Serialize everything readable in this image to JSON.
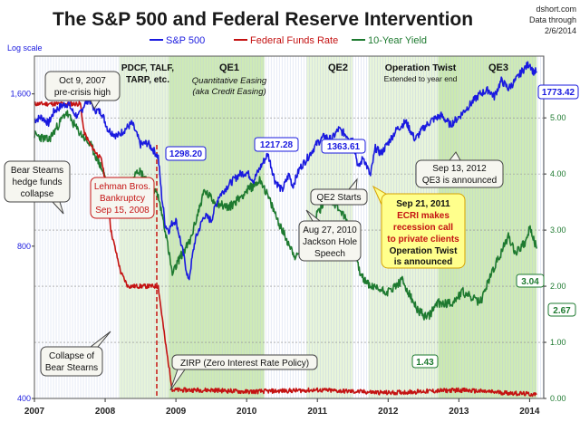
{
  "title": "The S&P 500 and Federal Reserve Intervention",
  "source": {
    "line1": "dshort.com",
    "line2": "Data through",
    "line3": "2/6/2014"
  },
  "log_scale_label": "Log scale",
  "legend": {
    "sp": "S&P 500",
    "ff": "Federal Funds Rate",
    "ty": "10-Year Yield"
  },
  "regions": {
    "pdcf": [
      "PDCF, TALF,",
      "TARP, etc."
    ],
    "qe1": [
      "QE1",
      "Quantitative Easing",
      "(aka Credit Easing)"
    ],
    "qe2": "QE2",
    "ot": [
      "Operation Twist",
      "Extended to year end"
    ],
    "qe3": "QE3"
  },
  "annotations": {
    "oct2007": [
      "Oct 9, 2007",
      "pre-crisis high"
    ],
    "bear1": [
      "Bear Stearns",
      "hedge funds",
      "collapse"
    ],
    "lehman": [
      "Lehman Bros.",
      "Bankruptcy",
      "Sep 15, 2008"
    ],
    "collapse": [
      "Collapse of",
      "Bear Stearns"
    ],
    "zirp": "ZIRP (Zero Interest Rate Policy)",
    "qe2start": "QE2 Starts",
    "aug2010": [
      "Aug 27, 2010",
      "Jackson Hole",
      "Speech"
    ],
    "ecri": [
      "Sep 21, 2011",
      "ECRI makes",
      "recession call",
      "to private clients",
      "Operation Twist",
      "is announced"
    ],
    "qe3ann": [
      "Sep 13, 2012",
      "QE3 is announced"
    ]
  },
  "value_labels": {
    "v1298": "1298.20",
    "v1217": "1217.28",
    "v1363": "1363.61",
    "v1773": "1773.42",
    "v143": "1.43",
    "v304": "3.04",
    "v267": "2.67"
  },
  "colors": {
    "sp": "#1a1adf",
    "ff": "#c41212",
    "ty": "#1e7a30",
    "title": "#1a1a1a",
    "shade_light": "#e4f3d4",
    "shade_dark": "#c7e7a8",
    "ecri_bg": "#ffff8c",
    "ecri_border": "#d6a200"
  },
  "chart_data": {
    "type": "line",
    "x_range": [
      2007.0,
      2014.2
    ],
    "x_ticks": [
      {
        "label": "2007",
        "x": 2007.0
      },
      {
        "label": "2008",
        "x": 2008.0
      },
      {
        "label": "2009",
        "x": 2009.0
      },
      {
        "label": "2010",
        "x": 2010.0
      },
      {
        "label": "2011",
        "x": 2011.0
      },
      {
        "label": "2012",
        "x": 2012.0
      },
      {
        "label": "2013",
        "x": 2013.0
      },
      {
        "label": "2014",
        "x": 2014.0
      }
    ],
    "y_left": {
      "scale": "log",
      "range": [
        400,
        1900
      ],
      "ticks": [
        {
          "label": "400",
          "v": 400
        },
        {
          "label": "800",
          "v": 800
        },
        {
          "label": "1,600",
          "v": 1600
        }
      ]
    },
    "y_right": {
      "scale": "linear",
      "range": [
        0,
        6.1
      ],
      "ticks": [
        {
          "label": "0.00",
          "v": 0
        },
        {
          "label": "1.00",
          "v": 1
        },
        {
          "label": "2.00",
          "v": 2
        },
        {
          "label": "3.00",
          "v": 3
        },
        {
          "label": "4.00",
          "v": 4
        },
        {
          "label": "5.00",
          "v": 5
        }
      ]
    },
    "shaded_regions": [
      {
        "name": "PDCF, TALF, TARP",
        "x0": 2008.2,
        "x1": 2008.9
      },
      {
        "name": "QE1",
        "x0": 2008.9,
        "x1": 2010.25
      },
      {
        "name": "QE2",
        "x0": 2010.85,
        "x1": 2011.5
      },
      {
        "name": "Operation Twist",
        "x0": 2011.72,
        "x1": 2012.99
      },
      {
        "name": "QE3",
        "x0": 2012.71,
        "x1": 2014.1
      }
    ],
    "series": [
      {
        "name": "S&P 500",
        "axis": "left",
        "points": [
          [
            2007.0,
            1420
          ],
          [
            2007.1,
            1440
          ],
          [
            2007.2,
            1400
          ],
          [
            2007.28,
            1480
          ],
          [
            2007.4,
            1520
          ],
          [
            2007.48,
            1530
          ],
          [
            2007.55,
            1470
          ],
          [
            2007.62,
            1440
          ],
          [
            2007.7,
            1520
          ],
          [
            2007.77,
            1565
          ],
          [
            2007.85,
            1490
          ],
          [
            2007.95,
            1470
          ],
          [
            2008.04,
            1360
          ],
          [
            2008.17,
            1320
          ],
          [
            2008.25,
            1350
          ],
          [
            2008.38,
            1400
          ],
          [
            2008.5,
            1270
          ],
          [
            2008.6,
            1280
          ],
          [
            2008.7,
            1230
          ],
          [
            2008.75,
            1200
          ],
          [
            2008.8,
            1000
          ],
          [
            2008.85,
            880
          ],
          [
            2008.9,
            860
          ],
          [
            2008.95,
            890
          ],
          [
            2009.0,
            900
          ],
          [
            2009.08,
            800
          ],
          [
            2009.18,
            680
          ],
          [
            2009.27,
            820
          ],
          [
            2009.4,
            920
          ],
          [
            2009.5,
            900
          ],
          [
            2009.6,
            1000
          ],
          [
            2009.75,
            1060
          ],
          [
            2009.9,
            1110
          ],
          [
            2010.0,
            1120
          ],
          [
            2010.1,
            1080
          ],
          [
            2010.2,
            1150
          ],
          [
            2010.3,
            1217
          ],
          [
            2010.4,
            1080
          ],
          [
            2010.5,
            1030
          ],
          [
            2010.6,
            1110
          ],
          [
            2010.65,
            1050
          ],
          [
            2010.75,
            1140
          ],
          [
            2010.85,
            1190
          ],
          [
            2011.0,
            1280
          ],
          [
            2011.1,
            1320
          ],
          [
            2011.2,
            1300
          ],
          [
            2011.3,
            1363
          ],
          [
            2011.4,
            1330
          ],
          [
            2011.5,
            1300
          ],
          [
            2011.58,
            1140
          ],
          [
            2011.65,
            1200
          ],
          [
            2011.75,
            1100
          ],
          [
            2011.82,
            1250
          ],
          [
            2011.9,
            1220
          ],
          [
            2012.0,
            1280
          ],
          [
            2012.12,
            1360
          ],
          [
            2012.25,
            1410
          ],
          [
            2012.38,
            1300
          ],
          [
            2012.5,
            1370
          ],
          [
            2012.62,
            1420
          ],
          [
            2012.75,
            1450
          ],
          [
            2012.88,
            1390
          ],
          [
            2013.0,
            1440
          ],
          [
            2013.15,
            1520
          ],
          [
            2013.3,
            1600
          ],
          [
            2013.42,
            1630
          ],
          [
            2013.5,
            1580
          ],
          [
            2013.6,
            1700
          ],
          [
            2013.7,
            1640
          ],
          [
            2013.8,
            1700
          ],
          [
            2013.9,
            1780
          ],
          [
            2014.0,
            1840
          ],
          [
            2014.05,
            1770
          ],
          [
            2014.1,
            1773
          ]
        ]
      },
      {
        "name": "Federal Funds Rate",
        "axis": "right",
        "points": [
          [
            2007.0,
            5.25
          ],
          [
            2007.65,
            5.25
          ],
          [
            2007.7,
            4.75
          ],
          [
            2007.8,
            4.5
          ],
          [
            2007.95,
            4.25
          ],
          [
            2008.05,
            3.5
          ],
          [
            2008.08,
            3.0
          ],
          [
            2008.22,
            2.25
          ],
          [
            2008.32,
            2.0
          ],
          [
            2008.75,
            2.0
          ],
          [
            2008.8,
            1.5
          ],
          [
            2008.85,
            1.0
          ],
          [
            2008.95,
            0.15
          ],
          [
            2009.5,
            0.15
          ],
          [
            2010.0,
            0.12
          ],
          [
            2011.0,
            0.15
          ],
          [
            2012.0,
            0.1
          ],
          [
            2013.0,
            0.15
          ],
          [
            2014.1,
            0.07
          ]
        ]
      },
      {
        "name": "10-Year Yield",
        "axis": "right",
        "points": [
          [
            2007.0,
            4.7
          ],
          [
            2007.2,
            4.6
          ],
          [
            2007.45,
            5.1
          ],
          [
            2007.6,
            4.8
          ],
          [
            2007.8,
            4.5
          ],
          [
            2007.95,
            4.1
          ],
          [
            2008.1,
            3.6
          ],
          [
            2008.2,
            3.5
          ],
          [
            2008.45,
            4.1
          ],
          [
            2008.6,
            3.9
          ],
          [
            2008.75,
            3.6
          ],
          [
            2008.85,
            3.0
          ],
          [
            2008.95,
            2.2
          ],
          [
            2009.05,
            2.5
          ],
          [
            2009.2,
            2.8
          ],
          [
            2009.4,
            3.7
          ],
          [
            2009.55,
            3.5
          ],
          [
            2009.75,
            3.4
          ],
          [
            2010.0,
            3.7
          ],
          [
            2010.2,
            3.9
          ],
          [
            2010.3,
            3.6
          ],
          [
            2010.5,
            3.0
          ],
          [
            2010.7,
            2.5
          ],
          [
            2010.8,
            2.7
          ],
          [
            2011.0,
            3.3
          ],
          [
            2011.15,
            3.6
          ],
          [
            2011.3,
            3.4
          ],
          [
            2011.5,
            3.0
          ],
          [
            2011.6,
            2.2
          ],
          [
            2011.75,
            2.0
          ],
          [
            2012.0,
            1.9
          ],
          [
            2012.2,
            2.1
          ],
          [
            2012.4,
            1.6
          ],
          [
            2012.55,
            1.43
          ],
          [
            2012.7,
            1.7
          ],
          [
            2012.9,
            1.7
          ],
          [
            2013.05,
            1.9
          ],
          [
            2013.3,
            1.7
          ],
          [
            2013.45,
            2.2
          ],
          [
            2013.6,
            2.6
          ],
          [
            2013.7,
            2.9
          ],
          [
            2013.8,
            2.6
          ],
          [
            2013.95,
            2.8
          ],
          [
            2014.0,
            3.04
          ],
          [
            2014.1,
            2.67
          ]
        ]
      }
    ]
  }
}
